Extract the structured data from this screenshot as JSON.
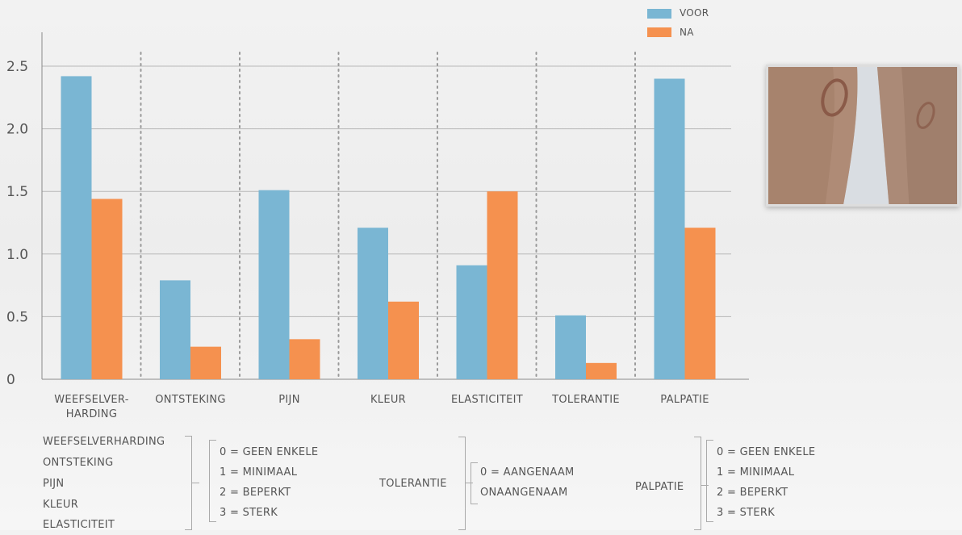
{
  "chart_data": {
    "type": "bar",
    "categories": [
      "WEEFSELVER-\nHARDING",
      "ONTSTEKING",
      "PIJN",
      "KLEUR",
      "ELASTICITEIT",
      "TOLERANTIE",
      "PALPATIE"
    ],
    "series": [
      {
        "name": "VOOR",
        "values": [
          2.42,
          0.79,
          1.51,
          1.21,
          0.91,
          0.51,
          2.4
        ]
      },
      {
        "name": "NA",
        "values": [
          1.44,
          0.26,
          0.32,
          0.62,
          1.5,
          0.13,
          1.21
        ]
      }
    ],
    "y_ticks": [
      "0",
      "0.5",
      "1.0",
      "1.5",
      "2.0",
      "2.5"
    ],
    "ylim": [
      0,
      2.5
    ],
    "colors": {
      "VOOR": "#7ab6d3",
      "NA": "#f5914f"
    },
    "grid": true,
    "legend_position": "top-right"
  },
  "notes": {
    "group1": {
      "items": [
        "WEEFSELVERHARDING",
        "ONTSTEKING",
        "PIJN",
        "KLEUR",
        "ELASTICITEIT"
      ],
      "scale": [
        "0 = GEEN ENKELE",
        "1 = MINIMAAL",
        "2 = BEPERKT",
        "3 = STERK"
      ]
    },
    "group2": {
      "label": "TOLERANTIE",
      "scale": [
        "0 = AANGENAAM",
        "ONAANGENAAM"
      ]
    },
    "group3": {
      "label": "PALPATIE",
      "scale": [
        "0 = GEEN ENKELE",
        "1 = MINIMAAL",
        "2 = BEPERKT",
        "3 = STERK"
      ]
    }
  }
}
